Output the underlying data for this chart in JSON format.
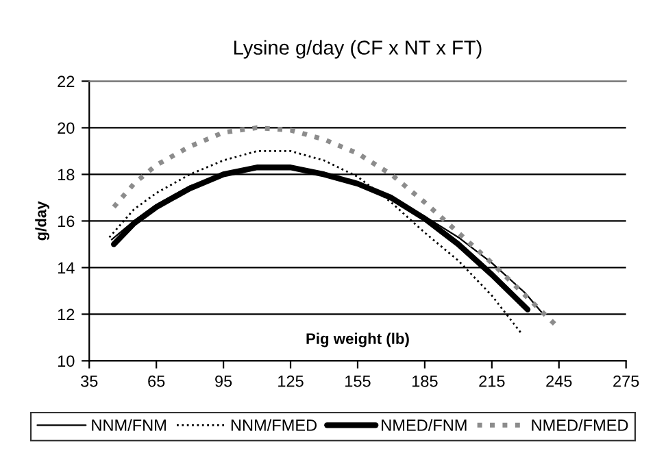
{
  "chart_data": {
    "type": "line",
    "title": "Lysine g/day (CF x NT x FT)",
    "xlabel": "Pig weight (lb)",
    "ylabel": "g/day",
    "xlim": [
      35,
      275
    ],
    "xticks": [
      35,
      65,
      95,
      125,
      155,
      185,
      215,
      245,
      275
    ],
    "ylim": [
      10,
      22
    ],
    "yticks": [
      10,
      12,
      14,
      16,
      18,
      20,
      22
    ],
    "grid": "y",
    "legend": "bottom",
    "marker": "none",
    "series": [
      {
        "name": "NNM/FNM",
        "color": "#000000",
        "line_style": "solid",
        "x": [
          45,
          55,
          65,
          80,
          95,
          110,
          125,
          140,
          155,
          170,
          185,
          200,
          215,
          230,
          238
        ],
        "values": [
          15.2,
          16.0,
          16.7,
          17.5,
          18.0,
          18.3,
          18.3,
          18.0,
          17.6,
          17.0,
          16.2,
          15.3,
          14.2,
          12.9,
          12.0
        ]
      },
      {
        "name": "NNM/FMED",
        "color": "#000000",
        "line_style": "dotted",
        "x": [
          44,
          55,
          65,
          80,
          95,
          110,
          125,
          140,
          155,
          170,
          185,
          200,
          215,
          228
        ],
        "values": [
          15.3,
          16.5,
          17.2,
          18.0,
          18.6,
          19.0,
          19.0,
          18.6,
          17.9,
          16.8,
          15.5,
          14.3,
          12.8,
          11.2
        ]
      },
      {
        "name": "NMED/FNM",
        "color": "#000000",
        "line_style": "solid",
        "x": [
          46,
          55,
          65,
          80,
          95,
          110,
          125,
          140,
          155,
          170,
          185,
          200,
          215,
          231
        ],
        "values": [
          15.0,
          15.9,
          16.6,
          17.4,
          18.0,
          18.3,
          18.3,
          18.0,
          17.6,
          17.0,
          16.1,
          15.0,
          13.7,
          12.2
        ]
      },
      {
        "name": "NMED/FMED",
        "color": "#8c8c8c",
        "line_style": "dotted",
        "x": [
          46,
          55,
          65,
          80,
          95,
          110,
          125,
          140,
          155,
          170,
          185,
          200,
          215,
          230,
          245
        ],
        "values": [
          16.6,
          17.6,
          18.4,
          19.2,
          19.8,
          20.0,
          19.9,
          19.5,
          18.9,
          18.0,
          16.8,
          15.5,
          14.2,
          12.8,
          11.4
        ]
      }
    ]
  }
}
